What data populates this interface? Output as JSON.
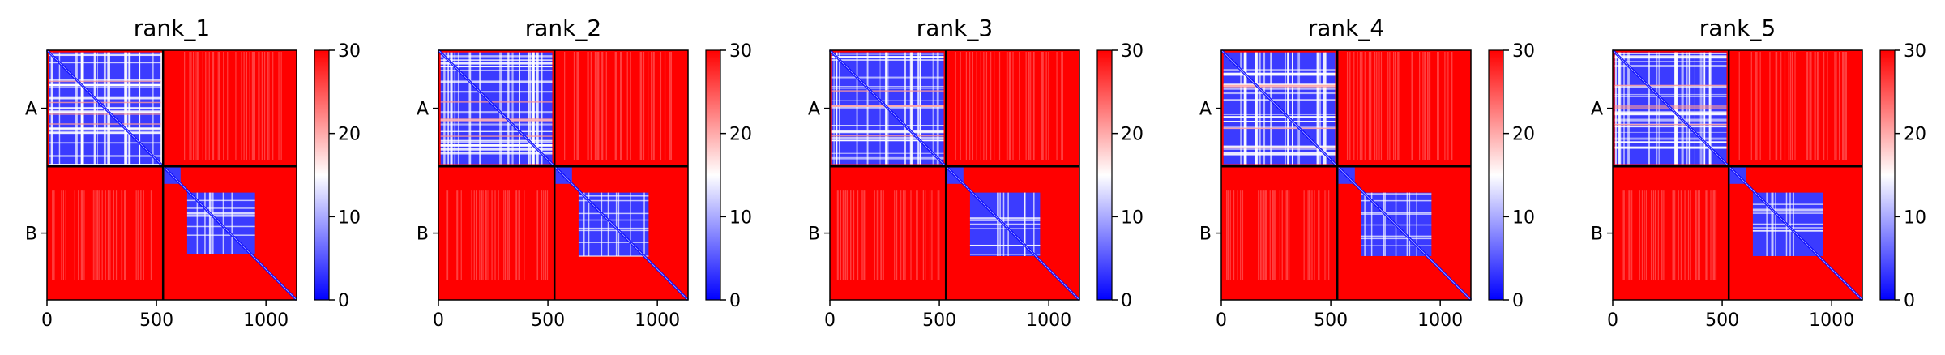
{
  "colors": {
    "low": "#0000ff",
    "mid": "#ffffff",
    "high": "#ff0000",
    "frame": "#000000"
  },
  "chart_data": [
    {
      "type": "heatmap",
      "title": "rank_1",
      "chains": [
        "A",
        "B"
      ],
      "chain_break": 530,
      "x_range": [
        0,
        1140
      ],
      "x_ticks": [
        {
          "value": 0,
          "label": "0"
        },
        {
          "value": 500,
          "label": "500"
        },
        {
          "value": 1000,
          "label": "1000"
        }
      ],
      "colorbar": {
        "range": [
          0,
          30
        ],
        "ticks": [
          {
            "value": 0,
            "label": "0"
          },
          {
            "value": 10,
            "label": "10"
          },
          {
            "value": 20,
            "label": "20"
          },
          {
            "value": 30,
            "label": "30"
          }
        ]
      },
      "blocks": {
        "AA": {
          "low_region": [
            10,
            520
          ]
        },
        "BB": {
          "low_region": [
            640,
            950
          ]
        },
        "AB": {
          "max_value": 30
        },
        "BA": {
          "max_value": 30
        }
      }
    },
    {
      "type": "heatmap",
      "title": "rank_2",
      "chains": [
        "A",
        "B"
      ],
      "chain_break": 530,
      "x_range": [
        0,
        1140
      ],
      "x_ticks": [
        {
          "value": 0,
          "label": "0"
        },
        {
          "value": 500,
          "label": "500"
        },
        {
          "value": 1000,
          "label": "1000"
        }
      ],
      "colorbar": {
        "range": [
          0,
          30
        ],
        "ticks": [
          {
            "value": 0,
            "label": "0"
          },
          {
            "value": 10,
            "label": "10"
          },
          {
            "value": 20,
            "label": "20"
          },
          {
            "value": 30,
            "label": "30"
          }
        ]
      },
      "blocks": {
        "AA": {
          "low_region": [
            10,
            520
          ]
        },
        "BB": {
          "low_region": [
            640,
            960
          ]
        },
        "AB": {
          "max_value": 30
        },
        "BA": {
          "max_value": 30
        }
      }
    },
    {
      "type": "heatmap",
      "title": "rank_3",
      "chains": [
        "A",
        "B"
      ],
      "chain_break": 530,
      "x_range": [
        0,
        1140
      ],
      "x_ticks": [
        {
          "value": 0,
          "label": "0"
        },
        {
          "value": 500,
          "label": "500"
        },
        {
          "value": 1000,
          "label": "1000"
        }
      ],
      "colorbar": {
        "range": [
          0,
          30
        ],
        "ticks": [
          {
            "value": 0,
            "label": "0"
          },
          {
            "value": 10,
            "label": "10"
          },
          {
            "value": 20,
            "label": "20"
          },
          {
            "value": 30,
            "label": "30"
          }
        ]
      },
      "blocks": {
        "AA": {
          "low_region": [
            10,
            520
          ]
        },
        "BB": {
          "low_region": [
            640,
            960
          ]
        },
        "AB": {
          "max_value": 30
        },
        "BA": {
          "max_value": 30
        }
      }
    },
    {
      "type": "heatmap",
      "title": "rank_4",
      "chains": [
        "A",
        "B"
      ],
      "chain_break": 530,
      "x_range": [
        0,
        1140
      ],
      "x_ticks": [
        {
          "value": 0,
          "label": "0"
        },
        {
          "value": 500,
          "label": "500"
        },
        {
          "value": 1000,
          "label": "1000"
        }
      ],
      "colorbar": {
        "range": [
          0,
          30
        ],
        "ticks": [
          {
            "value": 0,
            "label": "0"
          },
          {
            "value": 10,
            "label": "10"
          },
          {
            "value": 20,
            "label": "20"
          },
          {
            "value": 30,
            "label": "30"
          }
        ]
      },
      "blocks": {
        "AA": {
          "low_region": [
            10,
            520
          ]
        },
        "BB": {
          "low_region": [
            640,
            960
          ]
        },
        "AB": {
          "max_value": 30
        },
        "BA": {
          "max_value": 30
        }
      }
    },
    {
      "type": "heatmap",
      "title": "rank_5",
      "chains": [
        "A",
        "B"
      ],
      "chain_break": 530,
      "x_range": [
        0,
        1140
      ],
      "x_ticks": [
        {
          "value": 0,
          "label": "0"
        },
        {
          "value": 500,
          "label": "500"
        },
        {
          "value": 1000,
          "label": "1000"
        }
      ],
      "colorbar": {
        "range": [
          0,
          30
        ],
        "ticks": [
          {
            "value": 0,
            "label": "0"
          },
          {
            "value": 10,
            "label": "10"
          },
          {
            "value": 20,
            "label": "20"
          },
          {
            "value": 30,
            "label": "30"
          }
        ]
      },
      "blocks": {
        "AA": {
          "low_region": [
            10,
            520
          ]
        },
        "BB": {
          "low_region": [
            640,
            960
          ]
        },
        "AB": {
          "max_value": 30
        },
        "BA": {
          "max_value": 30
        }
      }
    }
  ]
}
